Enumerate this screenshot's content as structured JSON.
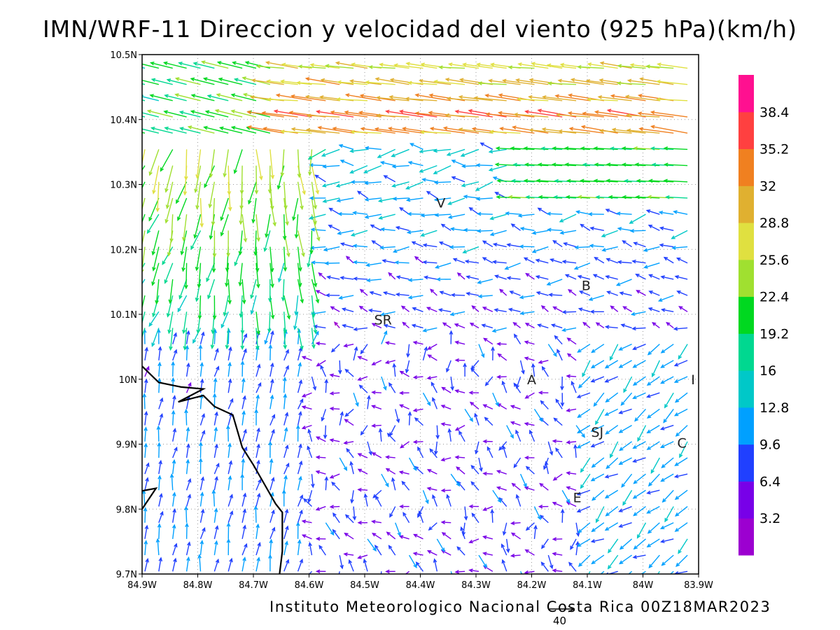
{
  "title": "IMN/WRF-11 Direccion y velocidad del viento (925 hPa)(km/h)",
  "footer": "Instituto Meteorologico Nacional Costa Rica 00Z18MAR2023",
  "reference_vector": {
    "label": "40",
    "speed": 40
  },
  "axes": {
    "lon_range": [
      -84.9,
      -83.9
    ],
    "lat_range": [
      9.7,
      10.5
    ],
    "x_ticks": [
      {
        "value": -84.9,
        "label": "84.9W"
      },
      {
        "value": -84.8,
        "label": "84.8W"
      },
      {
        "value": -84.7,
        "label": "84.7W"
      },
      {
        "value": -84.6,
        "label": "84.6W"
      },
      {
        "value": -84.5,
        "label": "84.5W"
      },
      {
        "value": -84.4,
        "label": "84.4W"
      },
      {
        "value": -84.3,
        "label": "84.3W"
      },
      {
        "value": -84.2,
        "label": "84.2W"
      },
      {
        "value": -84.1,
        "label": "84.1W"
      },
      {
        "value": -84.0,
        "label": "84W"
      },
      {
        "value": -83.9,
        "label": "83.9W"
      }
    ],
    "y_ticks": [
      {
        "value": 9.7,
        "label": "9.7N"
      },
      {
        "value": 9.8,
        "label": "9.8N"
      },
      {
        "value": 9.9,
        "label": "9.9N"
      },
      {
        "value": 10.0,
        "label": "10N"
      },
      {
        "value": 10.1,
        "label": "10.1N"
      },
      {
        "value": 10.2,
        "label": "10.2N"
      },
      {
        "value": 10.3,
        "label": "10.3N"
      },
      {
        "value": 10.4,
        "label": "10.4N"
      },
      {
        "value": 10.5,
        "label": "10.5N"
      }
    ],
    "grid": "dotted"
  },
  "places": [
    {
      "label": "V",
      "lon": -84.363,
      "lat": 10.272
    },
    {
      "label": "B",
      "lon": -84.102,
      "lat": 10.145
    },
    {
      "label": "SR",
      "lon": -84.467,
      "lat": 10.092
    },
    {
      "label": "A",
      "lon": -84.2,
      "lat": 10.0
    },
    {
      "label": "I",
      "lon": -83.91,
      "lat": 10.0
    },
    {
      "label": "SJ",
      "lon": -84.082,
      "lat": 9.919
    },
    {
      "label": "C",
      "lon": -83.93,
      "lat": 9.902
    },
    {
      "label": "E",
      "lon": -84.118,
      "lat": 9.818
    }
  ],
  "coastline": [
    [
      -84.9,
      10.02
    ],
    [
      -84.87,
      9.995
    ],
    [
      -84.83,
      9.988
    ],
    [
      -84.79,
      9.985
    ],
    [
      -84.835,
      9.965
    ],
    [
      -84.79,
      9.975
    ],
    [
      -84.77,
      9.958
    ],
    [
      -84.737,
      9.945
    ],
    [
      -84.72,
      9.895
    ],
    [
      -84.7,
      9.868
    ],
    [
      -84.68,
      9.838
    ],
    [
      -84.66,
      9.808
    ],
    [
      -84.648,
      9.795
    ],
    [
      -84.648,
      9.735
    ],
    [
      -84.653,
      9.7
    ]
  ],
  "coastline2": [
    [
      -84.9,
      9.828
    ],
    [
      -84.875,
      9.832
    ],
    [
      -84.9,
      9.8
    ]
  ],
  "colorbar": {
    "labels": [
      "3.2",
      "6.4",
      "9.6",
      "12.8",
      "16",
      "19.2",
      "22.4",
      "25.6",
      "28.8",
      "32",
      "35.2",
      "38.4"
    ],
    "colors": [
      "#9c00d0",
      "#7800e8",
      "#2040ff",
      "#00a0ff",
      "#00c8c8",
      "#00d890",
      "#00d820",
      "#a0e030",
      "#e0e040",
      "#e0b030",
      "#f08020",
      "#ff4040",
      "#ff1090"
    ]
  },
  "wind_field": {
    "units": "km/h",
    "regions": [
      "Strong easterly flow (25-38 km/h) across the northern band 10.35N-10.5N, east of 84.6W",
      "Northeasterly to northerly flow 16-28 km/h over 84.8W-84.6W between 10.1N and 10.3N",
      "Weak easterlies and calm variable winds (below 10 km/h) over the central valley 84.5W-84.0W",
      "Southerly to south-westerly 9-14 km/h winds over the western Pacific coast region"
    ]
  }
}
